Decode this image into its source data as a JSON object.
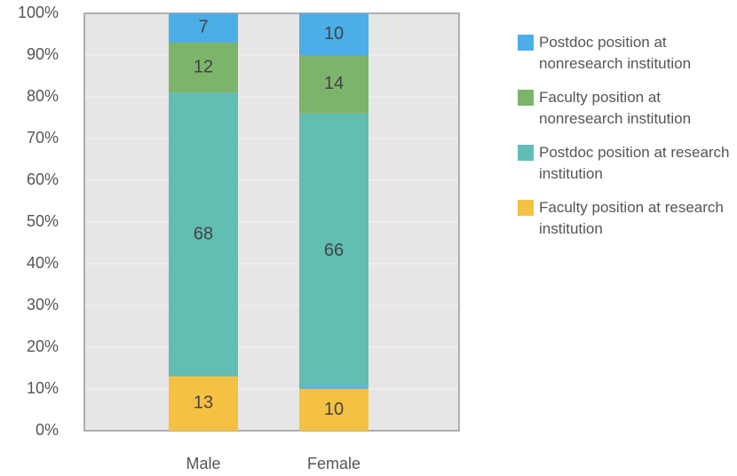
{
  "chart_data": {
    "type": "stacked_bar",
    "categories": [
      "Male",
      "Female"
    ],
    "series": [
      {
        "name": "Faculty position at research institution",
        "color": "#f5c142",
        "values": [
          13,
          10
        ]
      },
      {
        "name": "Postdoc position at research institution",
        "color": "#62bdb3",
        "values": [
          68,
          66
        ]
      },
      {
        "name": "Faculty position at nonresearch institution",
        "color": "#7db46c",
        "values": [
          12,
          14
        ]
      },
      {
        "name": "Postdoc position at nonresearch institution",
        "color": "#4baee8",
        "values": [
          7,
          10
        ]
      }
    ],
    "ylim": [
      0,
      100
    ],
    "yticks": [
      {
        "value": 0,
        "label": "0%"
      },
      {
        "value": 10,
        "label": "10%"
      },
      {
        "value": 20,
        "label": "20%"
      },
      {
        "value": 30,
        "label": "30%"
      },
      {
        "value": 40,
        "label": "40%"
      },
      {
        "value": 50,
        "label": "50%"
      },
      {
        "value": 60,
        "label": "60%"
      },
      {
        "value": 70,
        "label": "70%"
      },
      {
        "value": 80,
        "label": "80%"
      },
      {
        "value": 90,
        "label": "90%"
      },
      {
        "value": 100,
        "label": "100%"
      }
    ],
    "grid": true,
    "legend": "right"
  }
}
